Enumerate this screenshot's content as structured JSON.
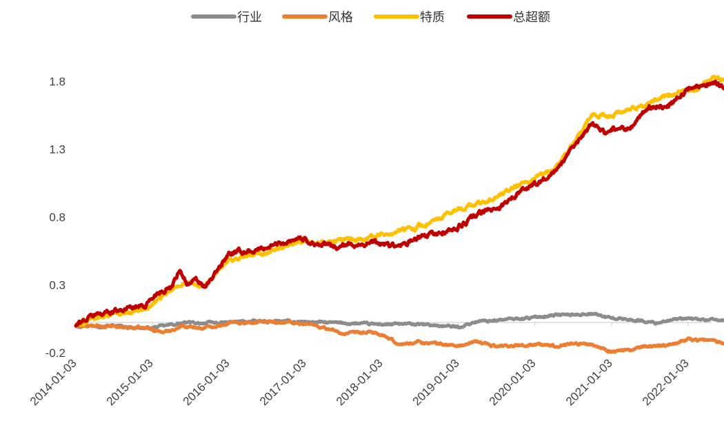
{
  "chart_data": {
    "type": "line",
    "title": "",
    "xlabel": "",
    "ylabel": "",
    "x_ticks": [
      "2014-01-03",
      "2015-01-03",
      "2016-01-03",
      "2017-01-03",
      "2018-01-03",
      "2019-01-03",
      "2020-01-03",
      "2021-01-03",
      "2022-01-03"
    ],
    "y_ticks": [
      "-0.2",
      "0.3",
      "0.8",
      "1.3",
      "1.8"
    ],
    "ylim": [
      -0.25,
      1.95
    ],
    "xlim": [
      "2014-01-03",
      "2022-08-31"
    ],
    "grid": false,
    "legend_position": "top-center",
    "series": [
      {
        "name": "行业",
        "color": "#8c8c8c",
        "points": [
          [
            "2014-01-03",
            0.0
          ],
          [
            "2014-07-01",
            0.0
          ],
          [
            "2014-12-15",
            -0.02
          ],
          [
            "2015-06-01",
            0.02
          ],
          [
            "2015-12-01",
            0.02
          ],
          [
            "2016-03-01",
            0.03
          ],
          [
            "2016-07-01",
            0.03
          ],
          [
            "2016-12-01",
            0.03
          ],
          [
            "2017-06-01",
            0.02
          ],
          [
            "2017-12-01",
            0.01
          ],
          [
            "2018-06-01",
            0.01
          ],
          [
            "2018-10-01",
            0.0
          ],
          [
            "2019-01-03",
            -0.01
          ],
          [
            "2019-04-01",
            0.03
          ],
          [
            "2019-07-01",
            0.04
          ],
          [
            "2019-10-01",
            0.05
          ],
          [
            "2020-01-03",
            0.06
          ],
          [
            "2020-04-01",
            0.08
          ],
          [
            "2020-07-01",
            0.08
          ],
          [
            "2020-10-01",
            0.09
          ],
          [
            "2020-12-15",
            0.06
          ],
          [
            "2021-05-01",
            0.04
          ],
          [
            "2021-08-01",
            0.02
          ],
          [
            "2021-10-01",
            0.04
          ],
          [
            "2022-01-03",
            0.05
          ],
          [
            "2022-05-01",
            0.04
          ],
          [
            "2022-08-31",
            0.04
          ]
        ]
      },
      {
        "name": "风格",
        "color": "#ed7d31",
        "points": [
          [
            "2014-01-03",
            0.0
          ],
          [
            "2014-07-01",
            -0.01
          ],
          [
            "2014-12-15",
            -0.02
          ],
          [
            "2015-03-01",
            -0.05
          ],
          [
            "2015-06-01",
            0.0
          ],
          [
            "2015-09-01",
            -0.02
          ],
          [
            "2016-01-03",
            0.02
          ],
          [
            "2016-06-01",
            0.03
          ],
          [
            "2016-12-01",
            0.02
          ],
          [
            "2017-03-01",
            0.0
          ],
          [
            "2017-07-01",
            -0.06
          ],
          [
            "2017-12-01",
            -0.05
          ],
          [
            "2018-04-01",
            -0.14
          ],
          [
            "2018-07-01",
            -0.12
          ],
          [
            "2019-01-03",
            -0.15
          ],
          [
            "2019-04-01",
            -0.12
          ],
          [
            "2019-07-01",
            -0.15
          ],
          [
            "2020-01-03",
            -0.14
          ],
          [
            "2020-04-01",
            -0.15
          ],
          [
            "2020-07-01",
            -0.13
          ],
          [
            "2020-10-01",
            -0.14
          ],
          [
            "2021-01-03",
            -0.19
          ],
          [
            "2021-04-01",
            -0.18
          ],
          [
            "2021-07-01",
            -0.15
          ],
          [
            "2021-10-01",
            -0.14
          ],
          [
            "2022-01-03",
            -0.1
          ],
          [
            "2022-05-01",
            -0.11
          ],
          [
            "2022-08-31",
            -0.15
          ]
        ]
      },
      {
        "name": "特质",
        "color": "#ffc000",
        "points": [
          [
            "2014-01-03",
            0.0
          ],
          [
            "2014-06-01",
            0.08
          ],
          [
            "2014-12-01",
            0.12
          ],
          [
            "2015-03-01",
            0.22
          ],
          [
            "2015-06-01",
            0.32
          ],
          [
            "2015-09-01",
            0.28
          ],
          [
            "2016-01-03",
            0.48
          ],
          [
            "2016-06-01",
            0.53
          ],
          [
            "2016-12-01",
            0.6
          ],
          [
            "2017-06-01",
            0.62
          ],
          [
            "2017-12-01",
            0.66
          ],
          [
            "2018-06-01",
            0.72
          ],
          [
            "2018-10-01",
            0.78
          ],
          [
            "2019-01-03",
            0.86
          ],
          [
            "2019-06-01",
            0.92
          ],
          [
            "2019-10-01",
            1.02
          ],
          [
            "2020-01-03",
            1.08
          ],
          [
            "2020-04-01",
            1.15
          ],
          [
            "2020-07-01",
            1.33
          ],
          [
            "2020-10-01",
            1.54
          ],
          [
            "2021-01-03",
            1.55
          ],
          [
            "2021-05-01",
            1.6
          ],
          [
            "2021-08-01",
            1.66
          ],
          [
            "2021-10-01",
            1.7
          ],
          [
            "2022-01-03",
            1.72
          ],
          [
            "2022-05-01",
            1.82
          ],
          [
            "2022-08-31",
            1.82
          ]
        ]
      },
      {
        "name": "总超额",
        "color": "#c00000",
        "points": [
          [
            "2014-01-03",
            0.0
          ],
          [
            "2014-04-01",
            0.08
          ],
          [
            "2014-08-01",
            0.12
          ],
          [
            "2014-12-01",
            0.15
          ],
          [
            "2015-02-01",
            0.25
          ],
          [
            "2015-04-01",
            0.28
          ],
          [
            "2015-05-15",
            0.42
          ],
          [
            "2015-06-20",
            0.3
          ],
          [
            "2015-08-01",
            0.33
          ],
          [
            "2015-09-15",
            0.28
          ],
          [
            "2015-12-01",
            0.45
          ],
          [
            "2016-01-03",
            0.53
          ],
          [
            "2016-06-01",
            0.56
          ],
          [
            "2016-12-01",
            0.65
          ],
          [
            "2017-03-01",
            0.6
          ],
          [
            "2017-06-01",
            0.58
          ],
          [
            "2017-09-01",
            0.6
          ],
          [
            "2017-12-01",
            0.61
          ],
          [
            "2018-04-01",
            0.58
          ],
          [
            "2018-07-01",
            0.65
          ],
          [
            "2018-10-01",
            0.68
          ],
          [
            "2019-01-03",
            0.72
          ],
          [
            "2019-04-01",
            0.82
          ],
          [
            "2019-07-01",
            0.86
          ],
          [
            "2019-10-01",
            0.96
          ],
          [
            "2020-01-03",
            1.05
          ],
          [
            "2020-04-01",
            1.12
          ],
          [
            "2020-07-01",
            1.3
          ],
          [
            "2020-10-01",
            1.5
          ],
          [
            "2020-12-01",
            1.42
          ],
          [
            "2021-01-03",
            1.45
          ],
          [
            "2021-04-01",
            1.46
          ],
          [
            "2021-07-01",
            1.61
          ],
          [
            "2021-10-01",
            1.62
          ],
          [
            "2022-01-03",
            1.74
          ],
          [
            "2022-05-01",
            1.8
          ],
          [
            "2022-08-31",
            1.72
          ]
        ]
      }
    ]
  }
}
